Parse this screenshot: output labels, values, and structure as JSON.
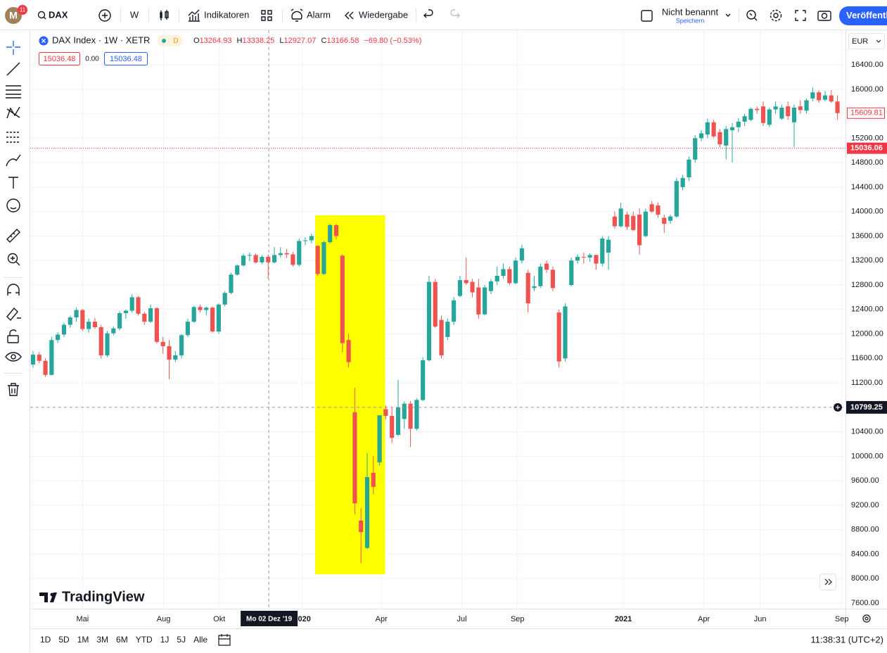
{
  "toolbar": {
    "avatar": "M",
    "badge": "11",
    "symbol": "DAX",
    "interval": "W",
    "indicators": "Indikatoren",
    "alert": "Alarm",
    "replay": "Wiedergabe",
    "layout_name": "Nicht benannt",
    "save": "Speichern",
    "publish": "Veröffentl"
  },
  "legend": {
    "name": "DAX Index · 1W · XETR",
    "badge": "D",
    "o_label": "O",
    "o": "13264.93",
    "h_label": "H",
    "h": "13338.25",
    "l_label": "L",
    "l": "12927.07",
    "c_label": "C",
    "c": "13166.58",
    "change": "−69.80 (−0.53%)",
    "bid": "15036.48",
    "spread": "0.00",
    "ask": "15036.48"
  },
  "currency": "EUR",
  "watermark": "TradingView",
  "ranges": [
    "1D",
    "5D",
    "1M",
    "3M",
    "6M",
    "YTD",
    "1J",
    "5J",
    "Alle"
  ],
  "clock": "11:38:31 (UTC+2)",
  "chart_data": {
    "type": "candlestick",
    "up_color": "#26a69a",
    "down_color": "#ef5350",
    "grid": true,
    "ylim": [
      7508,
      16965
    ],
    "yticks": [
      {
        "value": 7600,
        "label": "7600.00"
      },
      {
        "value": 8000,
        "label": "8000.00"
      },
      {
        "value": 8400,
        "label": "8400.00"
      },
      {
        "value": 8800,
        "label": "8800.00"
      },
      {
        "value": 9200,
        "label": "9200.00"
      },
      {
        "value": 9600,
        "label": "9600.00"
      },
      {
        "value": 10000,
        "label": "10000.00"
      },
      {
        "value": 10400,
        "label": "10400.00"
      },
      {
        "value": 10800,
        "label": "10800.00"
      },
      {
        "value": 11200,
        "label": "11200.00"
      },
      {
        "value": 11600,
        "label": "11600.00"
      },
      {
        "value": 12000,
        "label": "12000.00"
      },
      {
        "value": 12400,
        "label": "12400.00"
      },
      {
        "value": 12800,
        "label": "12800.00"
      },
      {
        "value": 13200,
        "label": "13200.00"
      },
      {
        "value": 13600,
        "label": "13600.00"
      },
      {
        "value": 14000,
        "label": "14000.00"
      },
      {
        "value": 14400,
        "label": "14400.00"
      },
      {
        "value": 14800,
        "label": "14800.00"
      },
      {
        "value": 15200,
        "label": "15200.00"
      },
      {
        "value": 15600,
        "label": "15600.00"
      },
      {
        "value": 16000,
        "label": "16000.00"
      },
      {
        "value": 16400,
        "label": "16400.00"
      }
    ],
    "xlim": [
      -0.45,
      131.3
    ],
    "xticks": [
      {
        "value": 8,
        "label": "Mai"
      },
      {
        "value": 21.1,
        "label": "Aug"
      },
      {
        "value": 30.1,
        "label": "Okt"
      },
      {
        "value": 43.5,
        "label": "2020"
      },
      {
        "value": 56.3,
        "label": "Apr"
      },
      {
        "value": 69.3,
        "label": "Jul"
      },
      {
        "value": 78.3,
        "label": "Sep"
      },
      {
        "value": 95.4,
        "label": "2021"
      },
      {
        "value": 108.4,
        "label": "Apr"
      },
      {
        "value": 117.5,
        "label": "Jun"
      },
      {
        "value": 130.7,
        "label": "Sep"
      }
    ],
    "last_price": 15609.81,
    "alert_line": 15036.06,
    "crosshair": {
      "x": 38.1,
      "y": 10799.25,
      "label": "Mo 02 Dez '19"
    },
    "highlight": {
      "x": [
        45.6,
        56.9
      ],
      "y": [
        8070,
        13940
      ],
      "color": "#ffff00"
    },
    "ohlc": [
      [
        11500,
        11720,
        11450,
        11660
      ],
      [
        11660,
        11700,
        11520,
        11560
      ],
      [
        11560,
        11600,
        11300,
        11330
      ],
      [
        11330,
        11950,
        11320,
        11900
      ],
      [
        11900,
        12030,
        11850,
        11990
      ],
      [
        11990,
        12180,
        11950,
        12150
      ],
      [
        12150,
        12300,
        12100,
        12270
      ],
      [
        12270,
        12430,
        12200,
        12390
      ],
      [
        12390,
        12410,
        12050,
        12080
      ],
      [
        12080,
        12250,
        12020,
        12200
      ],
      [
        12200,
        12260,
        12080,
        12110
      ],
      [
        12110,
        12150,
        11600,
        11650
      ],
      [
        11650,
        12050,
        11620,
        12010
      ],
      [
        12010,
        12120,
        11980,
        12090
      ],
      [
        12090,
        12370,
        12060,
        12340
      ],
      [
        12340,
        12400,
        12250,
        12380
      ],
      [
        12380,
        12650,
        12350,
        12600
      ],
      [
        12600,
        12620,
        12300,
        12330
      ],
      [
        12330,
        12360,
        12150,
        12200
      ],
      [
        12200,
        12480,
        12180,
        12420
      ],
      [
        12420,
        12440,
        11840,
        11870
      ],
      [
        11870,
        11950,
        11680,
        11800
      ],
      [
        11800,
        11900,
        11260,
        11580
      ],
      [
        11580,
        11720,
        11540,
        11650
      ],
      [
        11650,
        12000,
        11600,
        11980
      ],
      [
        11980,
        12250,
        11950,
        12200
      ],
      [
        12200,
        12460,
        12180,
        12440
      ],
      [
        12440,
        12480,
        12350,
        12390
      ],
      [
        12390,
        12450,
        12300,
        12430
      ],
      [
        12430,
        12450,
        12020,
        12040
      ],
      [
        12040,
        12500,
        12000,
        12480
      ],
      [
        12480,
        12700,
        12450,
        12670
      ],
      [
        12670,
        13000,
        12650,
        12970
      ],
      [
        12970,
        13140,
        12950,
        13120
      ],
      [
        13120,
        13310,
        13100,
        13280
      ],
      [
        13280,
        13330,
        13190,
        13290
      ],
      [
        13290,
        13320,
        13150,
        13170
      ],
      [
        13170,
        13290,
        13140,
        13260
      ],
      [
        13260,
        13300,
        12900,
        13170
      ],
      [
        13170,
        13420,
        13150,
        13290
      ],
      [
        13290,
        13420,
        13250,
        13320
      ],
      [
        13320,
        13390,
        13240,
        13300
      ],
      [
        13300,
        13340,
        13100,
        13130
      ],
      [
        13130,
        13560,
        13100,
        13520
      ],
      [
        13520,
        13580,
        13450,
        13530
      ],
      [
        13530,
        13640,
        13480,
        13600
      ],
      [
        13440,
        13450,
        12950,
        12980
      ],
      [
        12980,
        13520,
        12960,
        13500
      ],
      [
        13500,
        13800,
        13480,
        13780
      ],
      [
        13780,
        13800,
        13550,
        13600
      ],
      [
        13280,
        13300,
        11700,
        11850
      ],
      [
        11900,
        12000,
        11450,
        11540
      ],
      [
        10720,
        11120,
        9050,
        9230
      ],
      [
        8950,
        9150,
        8250,
        8760
      ],
      [
        8500,
        10050,
        8480,
        9660
      ],
      [
        9730,
        10000,
        9380,
        9500
      ],
      [
        9900,
        10600,
        9850,
        10670
      ],
      [
        10770,
        10830,
        10600,
        10660
      ],
      [
        10660,
        10800,
        10220,
        10300
      ],
      [
        10350,
        11250,
        10330,
        10800
      ],
      [
        10610,
        10900,
        10450,
        10860
      ],
      [
        10860,
        10900,
        10150,
        10450
      ],
      [
        10450,
        10950,
        10420,
        10920
      ],
      [
        10920,
        11620,
        10900,
        11570
      ],
      [
        11570,
        12950,
        11550,
        12850
      ],
      [
        12850,
        12900,
        12100,
        12120
      ],
      [
        12230,
        12300,
        11600,
        11650
      ],
      [
        11950,
        12250,
        11900,
        12200
      ],
      [
        12200,
        12600,
        12150,
        12550
      ],
      [
        12620,
        12950,
        12600,
        12880
      ],
      [
        12880,
        13250,
        12800,
        12830
      ],
      [
        12850,
        12900,
        12600,
        12680
      ],
      [
        12760,
        12900,
        12250,
        12320
      ],
      [
        12320,
        12800,
        12300,
        12760
      ],
      [
        12700,
        12900,
        12650,
        12860
      ],
      [
        12860,
        13100,
        12800,
        12950
      ],
      [
        12950,
        13150,
        12900,
        13060
      ],
      [
        13060,
        13100,
        12800,
        12830
      ],
      [
        12830,
        13250,
        12810,
        13200
      ],
      [
        13200,
        13460,
        13150,
        13400
      ],
      [
        13000,
        13050,
        12350,
        12500
      ],
      [
        12750,
        12950,
        12700,
        12780
      ],
      [
        12780,
        13150,
        12750,
        13100
      ],
      [
        13150,
        13200,
        13000,
        13050
      ],
      [
        13050,
        13100,
        12700,
        12750
      ],
      [
        12350,
        12400,
        11450,
        11550
      ],
      [
        11600,
        12500,
        11550,
        12450
      ],
      [
        12800,
        13250,
        12780,
        13200
      ],
      [
        13200,
        13300,
        13150,
        13260
      ],
      [
        13260,
        13330,
        13150,
        13250
      ],
      [
        13250,
        13320,
        13180,
        13290
      ],
      [
        13290,
        13300,
        13050,
        13150
      ],
      [
        13150,
        13600,
        13100,
        13560
      ],
      [
        13330,
        13600,
        13050,
        13540
      ],
      [
        13920,
        14000,
        13720,
        13760
      ],
      [
        13760,
        14150,
        13740,
        14050
      ],
      [
        13950,
        14000,
        13700,
        13750
      ],
      [
        13930,
        14000,
        13680,
        13700
      ],
      [
        13950,
        14050,
        13300,
        13450
      ],
      [
        13600,
        14050,
        13580,
        14000
      ],
      [
        14120,
        14170,
        13980,
        14000
      ],
      [
        14100,
        14150,
        13900,
        13950
      ],
      [
        13900,
        13950,
        13650,
        13800
      ],
      [
        13850,
        13950,
        13800,
        13920
      ],
      [
        13920,
        14550,
        13900,
        14500
      ],
      [
        14400,
        14600,
        14350,
        14550
      ],
      [
        14560,
        14900,
        14500,
        14850
      ],
      [
        14850,
        15250,
        14800,
        15200
      ],
      [
        15200,
        15330,
        15150,
        15280
      ],
      [
        15260,
        15520,
        15200,
        15460
      ],
      [
        15460,
        15500,
        15200,
        15230
      ],
      [
        15300,
        15350,
        15050,
        15100
      ],
      [
        15080,
        15400,
        14850,
        15350
      ],
      [
        15330,
        15450,
        14800,
        15380
      ],
      [
        15380,
        15530,
        15300,
        15470
      ],
      [
        15470,
        15600,
        15400,
        15560
      ],
      [
        15500,
        15700,
        15480,
        15680
      ],
      [
        15680,
        15720,
        15600,
        15660
      ],
      [
        15720,
        15800,
        15400,
        15450
      ],
      [
        15420,
        15700,
        15380,
        15670
      ],
      [
        15670,
        15800,
        15600,
        15720
      ],
      [
        15520,
        15750,
        15500,
        15700
      ],
      [
        15720,
        15800,
        15500,
        15560
      ],
      [
        15460,
        15750,
        15050,
        15700
      ],
      [
        15720,
        15820,
        15600,
        15660
      ],
      [
        15650,
        15850,
        15600,
        15820
      ],
      [
        15850,
        16030,
        15800,
        15950
      ],
      [
        15950,
        15980,
        15780,
        15820
      ],
      [
        15830,
        15970,
        15800,
        15900
      ],
      [
        15900,
        15990,
        15780,
        15800
      ],
      [
        15800,
        15900,
        15500,
        15610
      ]
    ]
  }
}
